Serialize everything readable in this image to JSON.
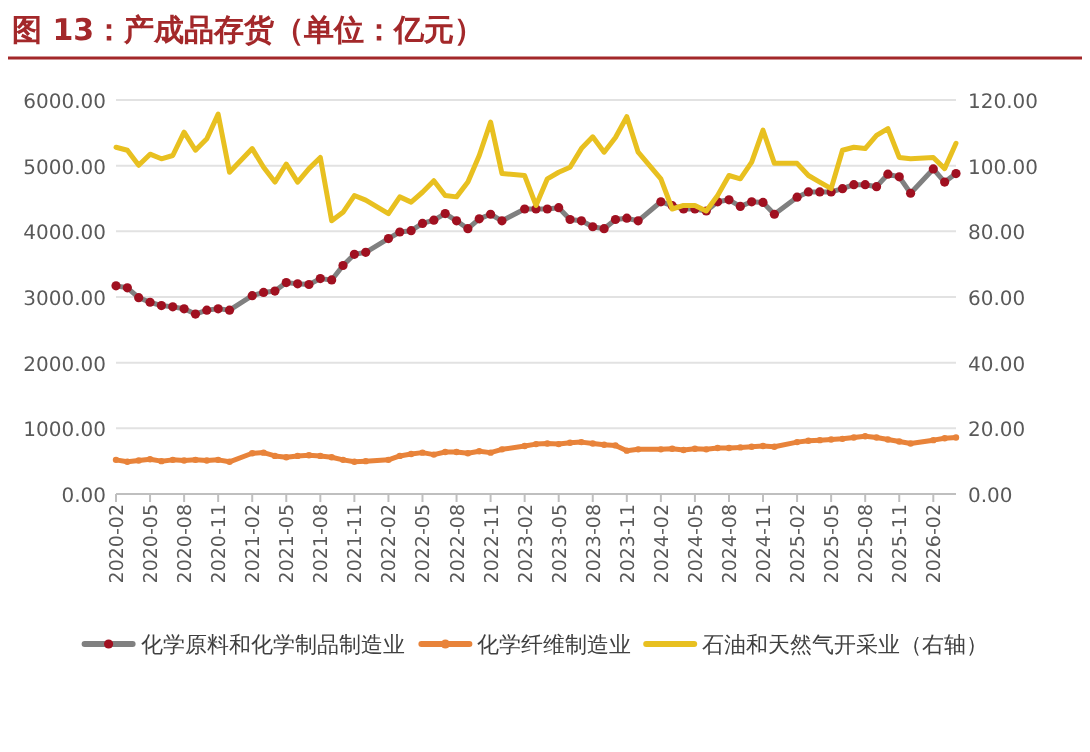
{
  "chart_data": {
    "type": "line",
    "title": "图 13：产成品存货（单位：亿元）",
    "x": [
      "2020-02",
      "2020-03",
      "2020-04",
      "2020-05",
      "2020-06",
      "2020-07",
      "2020-08",
      "2020-09",
      "2020-10",
      "2020-11",
      "2020-12",
      "2021-02",
      "2021-03",
      "2021-04",
      "2021-05",
      "2021-06",
      "2021-07",
      "2021-08",
      "2021-09",
      "2021-10",
      "2021-11",
      "2021-12",
      "2022-02",
      "2022-03",
      "2022-04",
      "2022-05",
      "2022-06",
      "2022-07",
      "2022-08",
      "2022-09",
      "2022-10",
      "2022-11",
      "2022-12",
      "2023-02",
      "2023-03",
      "2023-04",
      "2023-05",
      "2023-06",
      "2023-07",
      "2023-08",
      "2023-09",
      "2023-10",
      "2023-11",
      "2023-12",
      "2024-02",
      "2024-03",
      "2024-04",
      "2024-05",
      "2024-06",
      "2024-07",
      "2024-08",
      "2024-09",
      "2024-10",
      "2024-11",
      "2024-12",
      "2025-02",
      "2025-03",
      "2025-04",
      "2025-05",
      "2025-06",
      "2025-07",
      "2025-08",
      "2025-09",
      "2025-10",
      "2025-11",
      "2025-12",
      "2026-02",
      "2026-03",
      "2026-04"
    ],
    "series": [
      {
        "name": "化学原料和化学制品制造业",
        "color": "#a01020",
        "marker": "circle",
        "values": [
          3170,
          3140,
          2990,
          2920,
          2870,
          2850,
          2820,
          2740,
          2800,
          2820,
          2800,
          3020,
          3070,
          3090,
          3220,
          3200,
          3190,
          3280,
          3260,
          3480,
          3650,
          3680,
          3890,
          3990,
          4010,
          4120,
          4170,
          4270,
          4160,
          4040,
          4190,
          4260,
          4160,
          4340,
          4340,
          4340,
          4360,
          4180,
          4160,
          4070,
          4040,
          4180,
          4200,
          4160,
          4450,
          4390,
          4340,
          4340,
          4310,
          4450,
          4480,
          4380,
          4450,
          4440,
          4260,
          4520,
          4600,
          4600,
          4600,
          4650,
          4710,
          4710,
          4680,
          4870,
          4830,
          4580,
          4950,
          4750,
          4880
        ]
      },
      {
        "name": "化学纤维制造业",
        "color": "#e8833a",
        "marker": "circle",
        "values": [
          520,
          490,
          510,
          530,
          500,
          520,
          510,
          520,
          510,
          520,
          490,
          620,
          630,
          580,
          560,
          580,
          590,
          580,
          560,
          520,
          490,
          500,
          520,
          580,
          610,
          630,
          600,
          640,
          640,
          620,
          650,
          630,
          680,
          730,
          760,
          770,
          760,
          780,
          790,
          770,
          750,
          740,
          660,
          680,
          680,
          690,
          670,
          690,
          680,
          700,
          700,
          710,
          720,
          730,
          720,
          790,
          810,
          820,
          830,
          840,
          860,
          880,
          860,
          830,
          800,
          770,
          820,
          850,
          860
        ]
      },
      {
        "name": "石油和天然气开采业（右轴）",
        "color": "#e8c020",
        "axis": "y2",
        "marker": "none",
        "values": [
          105.6,
          104.7,
          100.1,
          103.5,
          102.1,
          103.1,
          110.2,
          104.7,
          108.2,
          115.7,
          98.0,
          105.2,
          99.5,
          95.0,
          100.5,
          95.0,
          99.1,
          102.5,
          83.2,
          85.8,
          90.9,
          89.5,
          85.4,
          90.5,
          88.9,
          91.9,
          95.4,
          90.9,
          90.5,
          95.0,
          103.1,
          113.3,
          97.6,
          97.0,
          87.9,
          96.0,
          98.0,
          99.5,
          105.2,
          108.8,
          104.1,
          108.6,
          114.9,
          104.1,
          96.0,
          86.8,
          87.9,
          87.9,
          86.2,
          90.9,
          97.0,
          96.0,
          101.1,
          110.8,
          100.7,
          100.7,
          97.0,
          95.0,
          93.0,
          104.7,
          105.6,
          105.2,
          109.2,
          111.3,
          102.5,
          102.1,
          102.5,
          99.1,
          106.8
        ]
      }
    ],
    "xlim": [
      "2020-02",
      "2026-04"
    ],
    "xticks": [
      "2020-02",
      "2020-05",
      "2020-08",
      "2020-11",
      "2021-02",
      "2021-05",
      "2021-08",
      "2021-11",
      "2022-02",
      "2022-05",
      "2022-08",
      "2022-11",
      "2023-02",
      "2023-05",
      "2023-08",
      "2023-11",
      "2024-02",
      "2024-05",
      "2024-08",
      "2024-11",
      "2025-02",
      "2025-05",
      "2025-08",
      "2025-11",
      "2026-02"
    ],
    "ylim": [
      0,
      6000
    ],
    "yticks": [
      {
        "value": 0,
        "label": "0.00"
      },
      {
        "value": 1000,
        "label": "1000.00"
      },
      {
        "value": 2000,
        "label": "2000.00"
      },
      {
        "value": 3000,
        "label": "3000.00"
      },
      {
        "value": 4000,
        "label": "4000.00"
      },
      {
        "value": 5000,
        "label": "5000.00"
      },
      {
        "value": 6000,
        "label": "6000.00"
      }
    ],
    "y2lim": [
      0,
      120
    ],
    "y2ticks": [
      {
        "value": 0,
        "label": "0.00"
      },
      {
        "value": 20,
        "label": "20.00"
      },
      {
        "value": 40,
        "label": "40.00"
      },
      {
        "value": 60,
        "label": "60.00"
      },
      {
        "value": 80,
        "label": "80.00"
      },
      {
        "value": 100,
        "label": "100.00"
      },
      {
        "value": 120,
        "label": "120.00"
      }
    ],
    "grid": "y",
    "legend": "bottom"
  }
}
